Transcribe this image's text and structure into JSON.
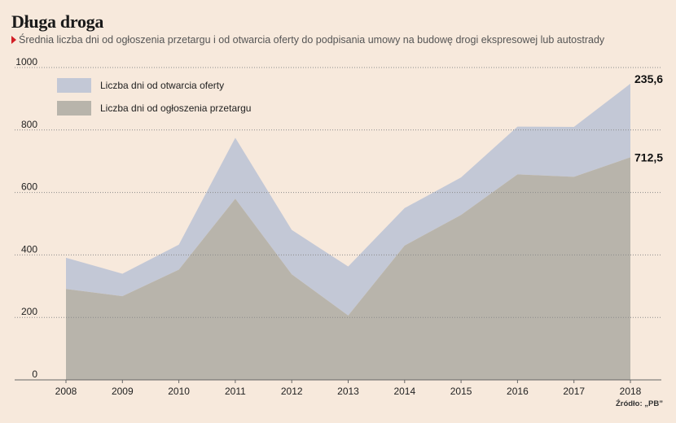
{
  "header": {
    "title": "Długa droga",
    "subtitle": "Średnia liczba dni od ogłoszenia przetargu i od otwarcia oferty do podpisania umowy na budowę drogi ekspresowej lub autostrady"
  },
  "source": "Źródło: „PB”",
  "colors": {
    "background": "#f7e9dc",
    "bid_opening_series": "#c3c8d6",
    "tender_series": "#b8b4ab",
    "marker_red": "#d21f26"
  },
  "chart_data": {
    "type": "area",
    "stacked": true,
    "x": [
      "2008",
      "2009",
      "2010",
      "2011",
      "2012",
      "2013",
      "2014",
      "2015",
      "2016",
      "2017",
      "2018"
    ],
    "y_ticks": [
      "0",
      "200",
      "400",
      "600",
      "800",
      "1000"
    ],
    "ylim": [
      0,
      1000
    ],
    "grid": "horizontal dotted",
    "legend_position": "top-left",
    "series": [
      {
        "name": "Liczba dni od ogłoszenia przetargu",
        "color": "#b8b4ab",
        "values": [
          291,
          268,
          353,
          580,
          338,
          206,
          430,
          528,
          658,
          650,
          712.5
        ]
      },
      {
        "name": "Liczba dni od otwarcia oferty",
        "color": "#c3c8d6",
        "values": [
          100,
          72,
          80,
          195,
          142,
          157,
          120,
          120,
          153,
          160,
          235.6
        ]
      }
    ],
    "annotations": [
      {
        "text": "235,6",
        "series": 1,
        "index": 10
      },
      {
        "text": "712,5",
        "series": 0,
        "index": 10
      }
    ]
  }
}
